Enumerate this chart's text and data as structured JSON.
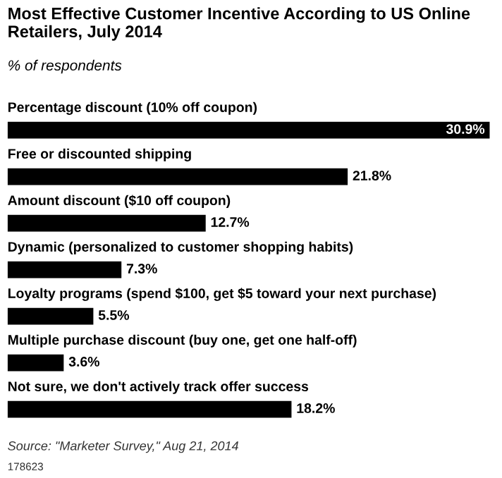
{
  "chart_data": {
    "type": "bar",
    "orientation": "horizontal",
    "title": "Most Effective Customer Incentive According to US Online Retailers, July 2014",
    "subtitle": "% of respondents",
    "categories": [
      "Percentage discount (10% off coupon)",
      "Free or discounted shipping",
      "Amount discount ($10 off coupon)",
      "Dynamic (personalized to customer shopping habits)",
      "Loyalty programs (spend $100, get $5 toward your next purchase)",
      "Multiple purchase discount (buy one, get one half-off)",
      "Not sure, we don't actively track offer success"
    ],
    "values": [
      30.9,
      21.8,
      12.7,
      7.3,
      5.5,
      3.6,
      18.2
    ],
    "value_labels": [
      "30.9%",
      "21.8%",
      "12.7%",
      "7.3%",
      "5.5%",
      "3.6%",
      "18.2%"
    ],
    "color": "#000000",
    "annotations": [
      "Source: \"Marketer Survey,\" Aug 21, 2014",
      "178623"
    ]
  }
}
